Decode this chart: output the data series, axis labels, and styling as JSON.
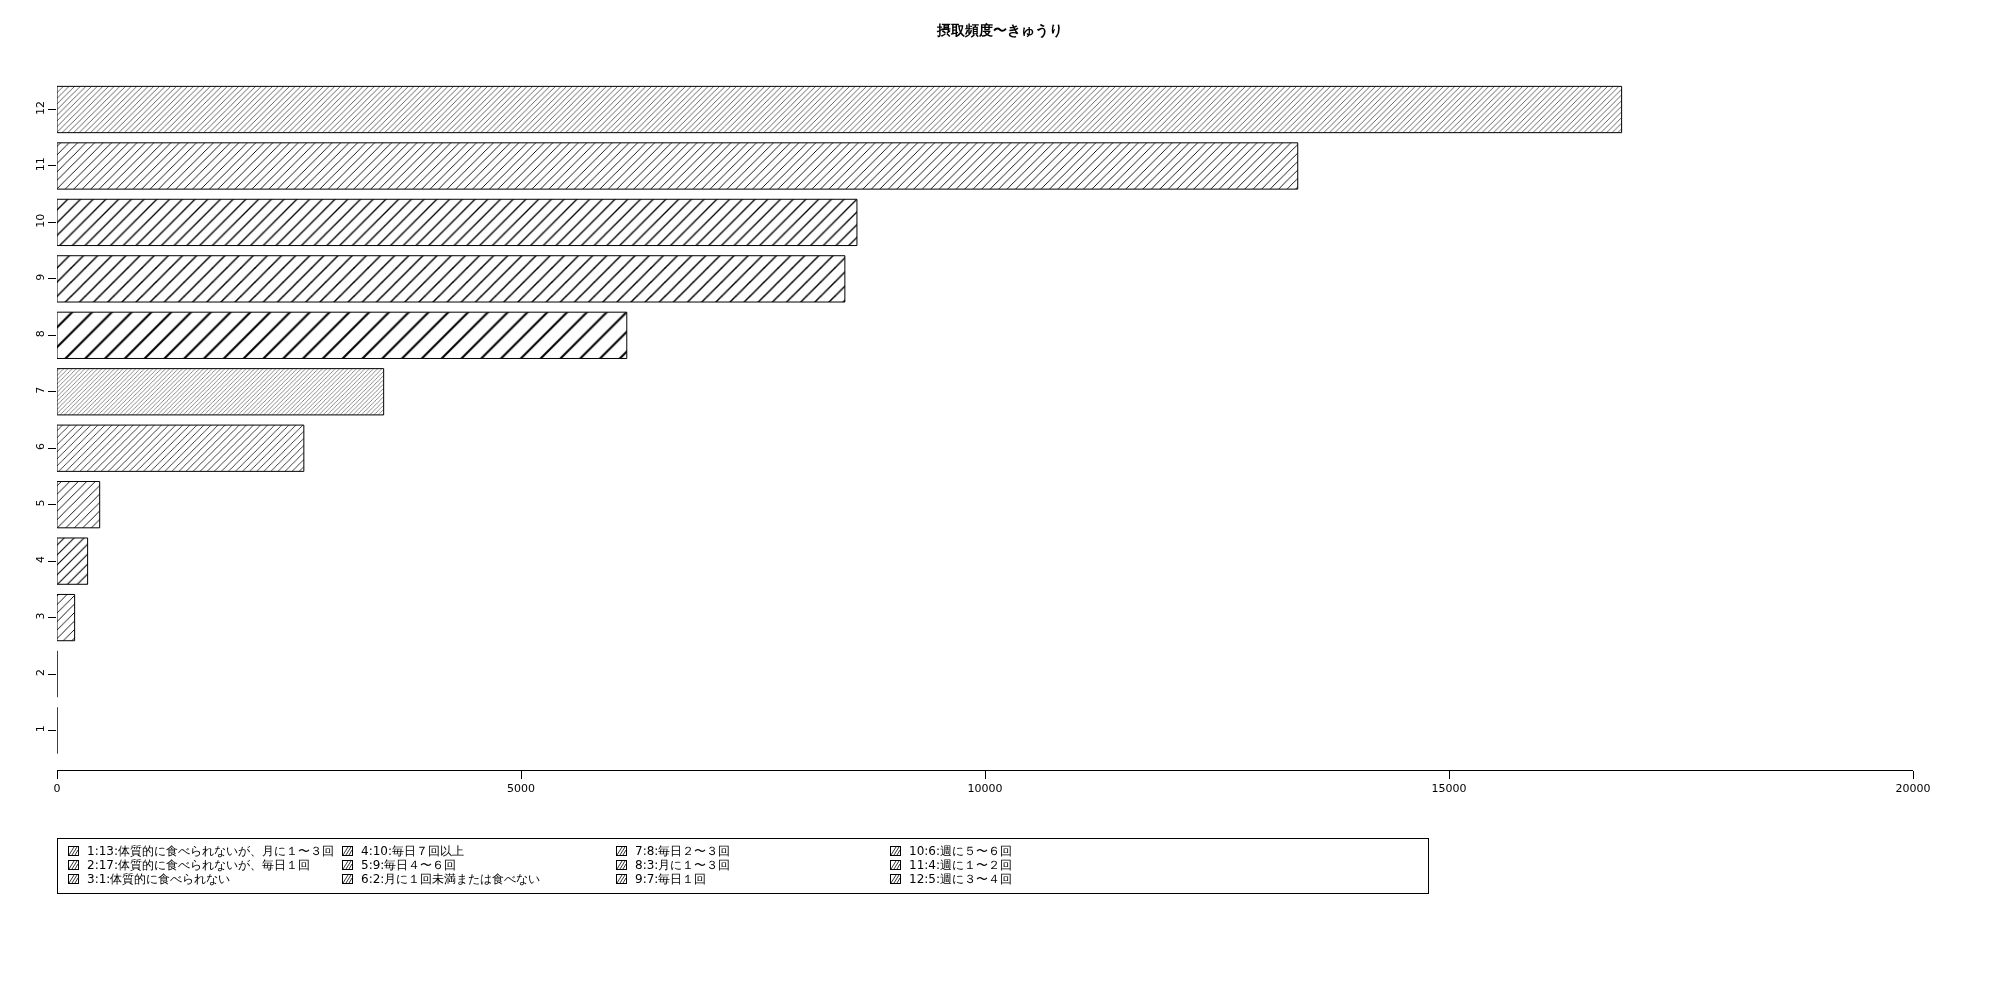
{
  "chart_data": {
    "type": "bar",
    "title": "摂取頻度〜きゅうり",
    "orientation": "horizontal",
    "categories": [
      "12",
      "11",
      "10",
      "9",
      "8",
      "7",
      "6",
      "5",
      "4",
      "3",
      "2",
      "1"
    ],
    "values": [
      16860,
      13370,
      8620,
      8490,
      6140,
      3520,
      2660,
      460,
      330,
      190,
      0,
      0
    ],
    "color": "#000000",
    "annotations": [
      "1:13:体質的に食べられないが、月に１〜３回",
      "2:17:体質的に食べられないが、毎日１回",
      "3:1:体質的に食べられない",
      "4:10:毎日７回以上",
      "5:9:毎日４〜６回",
      "6:2:月に１回未満または食べない",
      "7:8:毎日２〜３回",
      "8:3:月に１〜３回",
      "9:7:毎日１回",
      "10:6:週に５〜６回",
      "11:4:週に１〜２回",
      "12:5:週に３〜４回"
    ],
    "xlim": [
      0,
      20000
    ],
    "xticks": [
      0,
      5000,
      10000,
      15000,
      20000
    ],
    "grid": false
  }
}
